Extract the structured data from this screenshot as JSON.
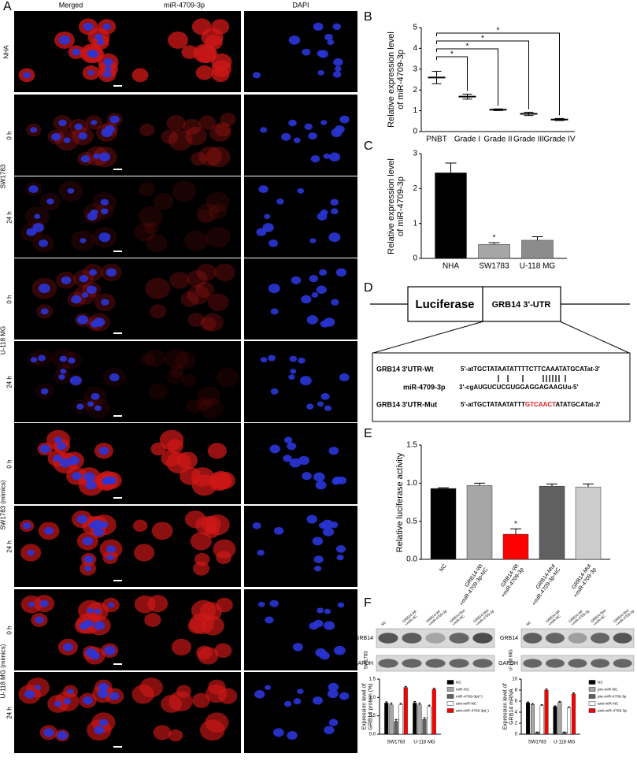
{
  "panel_letters": [
    "A",
    "B",
    "C",
    "D",
    "E",
    "F"
  ],
  "panel_a": {
    "column_headers": [
      "Merged",
      "miR-4709-3p",
      "DAPI"
    ],
    "header_colors": [
      "#000000",
      "#e02020",
      "#2030c0"
    ],
    "groups": [
      {
        "label": "NHA",
        "times": []
      },
      {
        "label": "SW1783",
        "times": [
          "0 h",
          "24 h"
        ]
      },
      {
        "label": "U-118 MG",
        "times": [
          "0 h",
          "24 h"
        ]
      },
      {
        "label": "SW1783 (mimics)",
        "times": [
          "0 h",
          "24 h"
        ]
      },
      {
        "label": "U-118 MG (mimics)",
        "times": [
          "0 h",
          "24 h"
        ]
      }
    ]
  },
  "chart_data": [
    {
      "type": "dot",
      "y_label": "Relative expression level\nof miR-4709-3p",
      "categories": [
        "PNBT",
        "Grade I",
        "Grade II",
        "Grade III",
        "Grade IV"
      ],
      "values": [
        2.6,
        1.68,
        1.05,
        0.85,
        0.58
      ],
      "errors": [
        0.3,
        0.12,
        0.04,
        0.08,
        0.05
      ],
      "color": "#000000",
      "ylim": [
        0,
        5
      ],
      "yticks": [
        0,
        1,
        2,
        3,
        4,
        5
      ],
      "significance": [
        "*",
        "*",
        "*",
        "*"
      ]
    },
    {
      "type": "bar",
      "y_label": "Relative expression level\nof miR-4709-3p",
      "categories": [
        "NHA",
        "SW1783",
        "U-118 MG"
      ],
      "values": [
        2.45,
        0.4,
        0.52
      ],
      "errors": [
        0.28,
        0.05,
        0.1
      ],
      "colors": [
        "#000000",
        "#a6a6a6",
        "#8c8c8c"
      ],
      "ylim": [
        0,
        3
      ],
      "yticks": [
        0,
        1,
        2,
        3
      ],
      "annotations": [
        null,
        "*",
        null
      ]
    },
    {
      "type": "bar",
      "y_label": "Relative luciferase activity",
      "categories": [
        "NC",
        "GRB14-Wt\n+miR-4709-3p-NC",
        "GRB14-Wt\n+miR-4709-3p",
        "GRB14-Mut\n+miR-4709-3p-NC",
        "GRB14-Mut\n+miR-4709-3p"
      ],
      "values": [
        0.93,
        0.97,
        0.33,
        0.96,
        0.95
      ],
      "errors": [
        0.01,
        0.03,
        0.07,
        0.03,
        0.04
      ],
      "colors": [
        "#000000",
        "#a6a6a6",
        "#ff0000",
        "#606060",
        "#cccccc"
      ],
      "ylim": [
        0,
        1.5
      ],
      "yticks": [
        {
          "value": 0,
          "label": "0.0"
        },
        0.5,
        {
          "value": 1,
          "label": "1.0"
        },
        1.5
      ],
      "annotations": [
        null,
        null,
        "*",
        null,
        null
      ]
    },
    {
      "type": "grouped_bar",
      "y_label": "Expression level of\nGRB14 protein (%)",
      "categories": [
        "SW1783",
        "U-118 MG"
      ],
      "series": [
        {
          "name": "NC",
          "color": "#000000",
          "values": [
            0.85,
            0.85
          ],
          "errors": [
            0.03,
            0.04
          ]
        },
        {
          "name": "miR-NC",
          "color": "#a6a6a6",
          "values": [
            0.8,
            0.8
          ],
          "errors": [
            0.05,
            0.05
          ]
        },
        {
          "name": "miR-4709-3p(+)",
          "color": "#606060",
          "values": [
            0.35,
            0.4
          ],
          "errors": [
            0.05,
            0.05
          ],
          "annotations": [
            "*",
            "*"
          ]
        },
        {
          "name": "anti-miR-NC",
          "color": "#ffffff",
          "values": [
            0.8,
            0.75
          ],
          "errors": [
            0.04,
            0.04
          ]
        },
        {
          "name": "anti-miR-4709-3p(-)",
          "color": "#ff0000",
          "values": [
            1.27,
            1.22
          ],
          "errors": [
            0.03,
            0.03
          ]
        }
      ],
      "ylim": [
        0,
        1.5
      ],
      "yticks": [
        {
          "value": 0,
          "label": "0.0"
        },
        0.5,
        {
          "value": 1,
          "label": "1.0"
        },
        1.5
      ]
    },
    {
      "type": "grouped_bar",
      "y_label": "Expression level of\nGRB14 mRNA",
      "categories": [
        "SW1783",
        "U-118 MG"
      ],
      "series": [
        {
          "name": "NC",
          "color": "#000000",
          "values": [
            5.7,
            5.0
          ],
          "errors": [
            0.15,
            0.15
          ]
        },
        {
          "name": "pre-miR-NC",
          "color": "#a6a6a6",
          "values": [
            5.4,
            5.8
          ],
          "errors": [
            0.15,
            0.15
          ]
        },
        {
          "name": "pre-miR-4709-3p",
          "color": "#606060",
          "values": [
            0.3,
            0.3
          ],
          "errors": [
            0.1,
            0.1
          ],
          "annotations": [
            "*",
            "*"
          ]
        },
        {
          "name": "anti-miR-NC",
          "color": "#ffffff",
          "values": [
            5.2,
            4.8
          ],
          "errors": [
            0.15,
            0.15
          ]
        },
        {
          "name": "anti-miR-4709-3p",
          "color": "#ff0000",
          "values": [
            8.0,
            7.3
          ],
          "errors": [
            0.2,
            0.2
          ]
        }
      ],
      "ylim": [
        0,
        10
      ],
      "yticks": [
        0,
        2,
        4,
        6,
        8,
        10
      ]
    }
  ],
  "panel_d": {
    "luciferase": "Luciferase",
    "utr": "GRB14 3'-UTR",
    "wt_label": "GRB14 3'UTR-Wt",
    "wt_seq": "5'-atTGCTATAATATTTTCTTCAAATATGCATat-3'",
    "mir_label": "miR-4709-3p",
    "mir_seq": "3'-cgAUGUCUCGUGGAGGAGAAGUu-5'",
    "mut_label": "GRB14 3'UTR-Mut",
    "mut_seq": {
      "prefix": "5'-atTGCTATAATATTT",
      "mutation": "GTCAACT",
      "suffix": "ATATGCATat-3'"
    }
  },
  "panel_f": {
    "lanes": [
      "NC",
      "GRB14-Wt\n+miR-NC",
      "GRB14-Wt\n+miR-4709-3p",
      "GRB14-Mut\n+miR-NC",
      "GRB14-Mut\n+miR-4709-3p"
    ],
    "blot_rows": [
      "GRB14",
      "GAPDH"
    ],
    "cell_lines": [
      "SW1783",
      "U-118 MG"
    ]
  }
}
